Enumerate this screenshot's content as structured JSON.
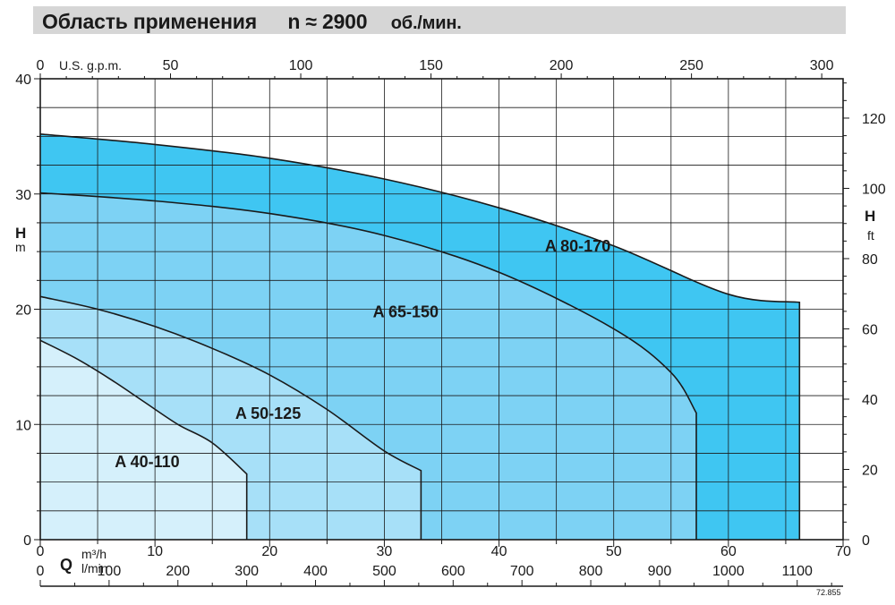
{
  "header": {
    "title": "Область применения",
    "speed_symbol": "n ≈ 2900",
    "speed_unit": "об./мин."
  },
  "figure_code": "72.855",
  "chart_data": {
    "type": "area",
    "title": "Область применения n ≈ 2900 об./мин.",
    "x_axis_bottom": {
      "label": "Q",
      "unit": "m³/h",
      "range": [
        0,
        70
      ],
      "ticks": [
        0,
        10,
        20,
        30,
        40,
        50,
        60,
        70
      ]
    },
    "x_axis_lpm": {
      "unit": "l/min",
      "range": [
        0,
        1166.7
      ],
      "ticks": [
        0,
        100,
        200,
        300,
        400,
        500,
        600,
        700,
        800,
        900,
        1000,
        1100
      ]
    },
    "x_axis_top": {
      "unit": "U.S. g.p.m.",
      "range": [
        0,
        308.2
      ],
      "ticks": [
        0,
        50,
        100,
        150,
        200,
        250,
        300
      ]
    },
    "y_axis_left": {
      "label": "H",
      "unit": "m",
      "range": [
        0,
        40
      ],
      "ticks": [
        0,
        10,
        20,
        30,
        40
      ]
    },
    "y_axis_right": {
      "label": "H",
      "unit": "ft",
      "range": [
        0,
        131.2
      ],
      "ticks": [
        0,
        20,
        40,
        60,
        80,
        100,
        120
      ]
    },
    "grid": true,
    "series": [
      {
        "name": "A 80-170",
        "color": "#3fc6f2",
        "label_at": [
          44,
          25
        ],
        "points": [
          [
            0,
            35.2
          ],
          [
            10,
            34.3
          ],
          [
            20,
            33.1
          ],
          [
            30,
            31.3
          ],
          [
            40,
            28.8
          ],
          [
            50,
            25.5
          ],
          [
            60,
            21.3
          ],
          [
            66.2,
            20.6
          ],
          [
            66.2,
            0
          ]
        ]
      },
      {
        "name": "A 65-150",
        "color": "#7dd2f4",
        "label_at": [
          29,
          19.3
        ],
        "points": [
          [
            0,
            30.1
          ],
          [
            10,
            29.4
          ],
          [
            20,
            28.3
          ],
          [
            30,
            26.4
          ],
          [
            40,
            23.2
          ],
          [
            50,
            18.3
          ],
          [
            55,
            14.5
          ],
          [
            57.2,
            11
          ],
          [
            57.2,
            0
          ]
        ]
      },
      {
        "name": "A 50-125",
        "color": "#a7e0f8",
        "label_at": [
          17,
          10.5
        ],
        "points": [
          [
            0,
            21.1
          ],
          [
            5,
            20
          ],
          [
            10,
            18.5
          ],
          [
            15,
            16.6
          ],
          [
            20,
            14.3
          ],
          [
            25,
            11.3
          ],
          [
            30,
            7.7
          ],
          [
            33.2,
            6
          ],
          [
            33.2,
            0
          ]
        ]
      },
      {
        "name": "A 40-110",
        "color": "#d5f0fb",
        "label_at": [
          6.5,
          6.3
        ],
        "points": [
          [
            0,
            17.3
          ],
          [
            3,
            15.8
          ],
          [
            6,
            14
          ],
          [
            9,
            12
          ],
          [
            12,
            10
          ],
          [
            15,
            8.4
          ],
          [
            18,
            5.7
          ],
          [
            18,
            0
          ]
        ]
      }
    ]
  }
}
